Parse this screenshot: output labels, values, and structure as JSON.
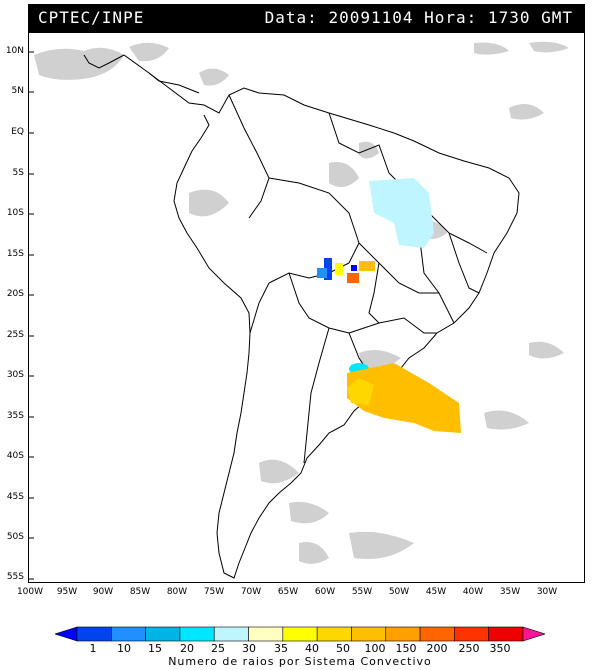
{
  "header": {
    "source": "CPTEC/INPE",
    "datetime": "Data: 20091104 Hora: 1730 GMT"
  },
  "map": {
    "lat_labels": [
      "10N",
      "5N",
      "EQ",
      "5S",
      "10S",
      "15S",
      "20S",
      "25S",
      "30S",
      "35S",
      "40S",
      "45S",
      "50S",
      "55S"
    ],
    "lon_labels": [
      "100W",
      "95W",
      "90W",
      "85W",
      "80W",
      "75W",
      "70W",
      "65W",
      "60W",
      "55W",
      "50W",
      "45W",
      "40W",
      "35W",
      "30W"
    ]
  },
  "legend": {
    "title": "Numero de raios por Sistema Convectivo",
    "ticks": [
      "1",
      "10",
      "15",
      "20",
      "25",
      "30",
      "35",
      "40",
      "50",
      "100",
      "150",
      "200",
      "250",
      "350"
    ],
    "colors": [
      "#0000ff",
      "#0044ee",
      "#1e90ff",
      "#00b4e6",
      "#00e6ff",
      "#bff5ff",
      "#ffffc0",
      "#ffff00",
      "#ffd700",
      "#ffbf00",
      "#ff9f00",
      "#ff6600",
      "#ff3300",
      "#ee0000",
      "#ff1493"
    ]
  }
}
